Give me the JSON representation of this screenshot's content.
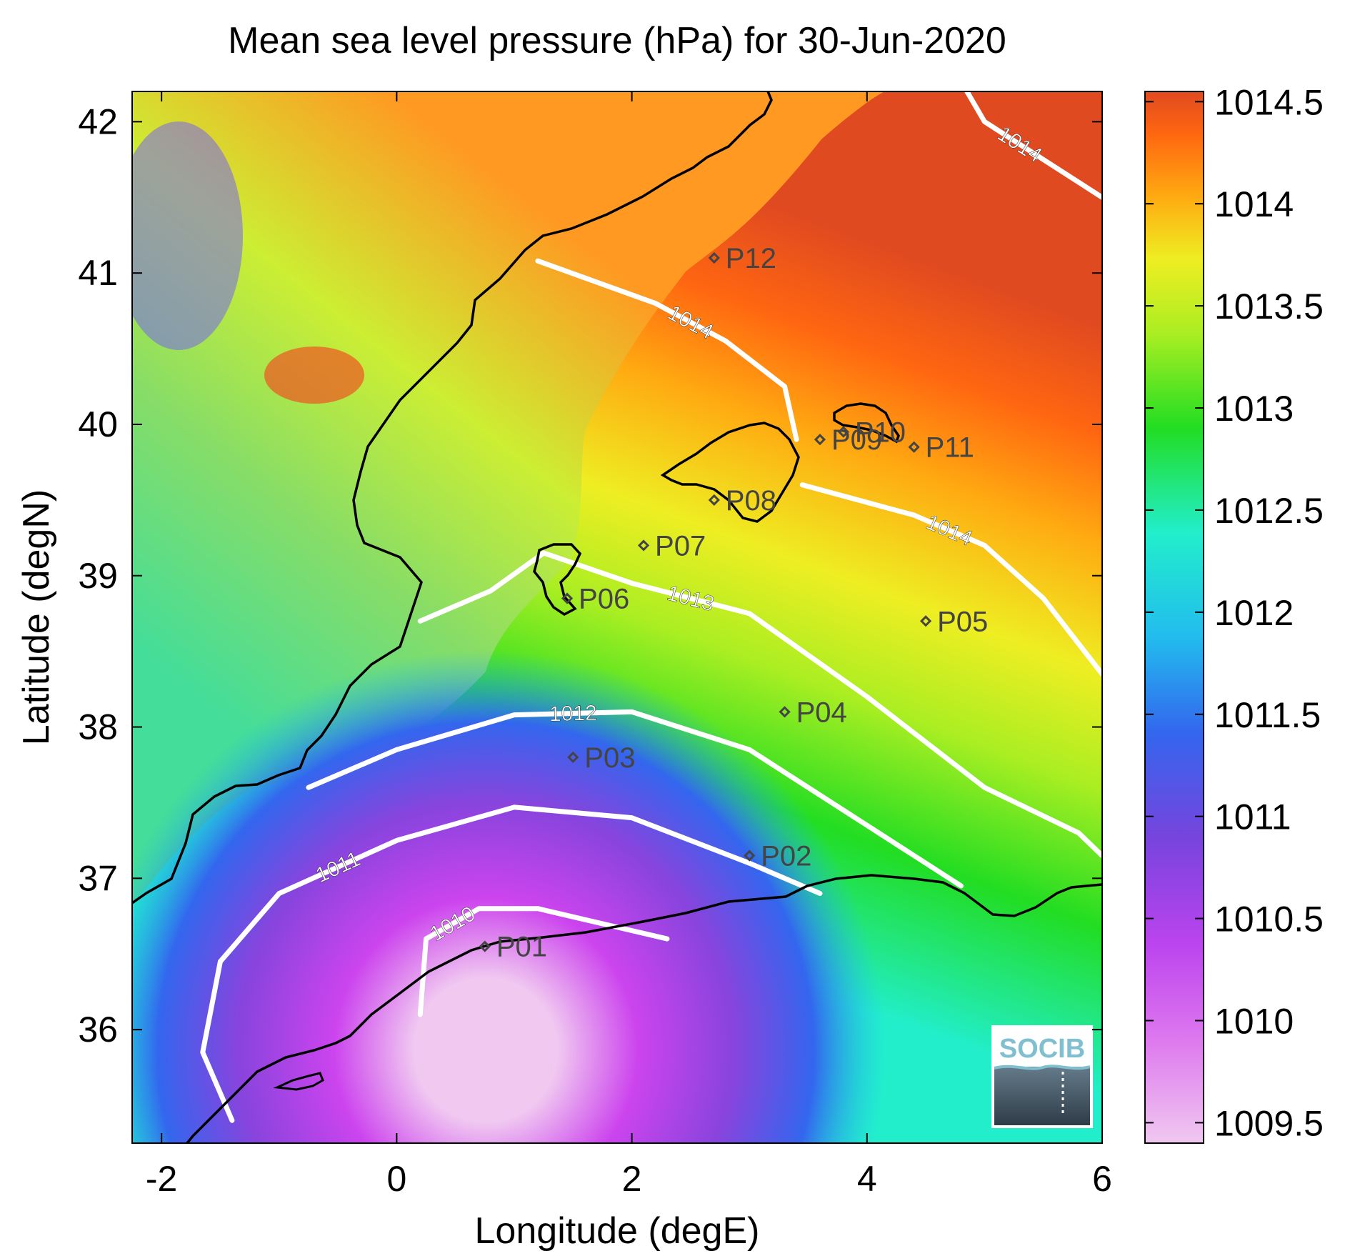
{
  "title": "Mean sea level pressure (hPa) for 30-Jun-2020",
  "chart_data": {
    "type": "heatmap",
    "title": "Mean sea level pressure (hPa) for 30-Jun-2020",
    "xlabel": "Longitude (degE)",
    "ylabel": "Latitude (degN)",
    "xlim": [
      -2.25,
      6.0
    ],
    "ylim": [
      35.25,
      42.2
    ],
    "xticks": [
      -2,
      0,
      2,
      4,
      6
    ],
    "xtick_labels": [
      "-2",
      "0",
      "2",
      "4",
      "6"
    ],
    "yticks": [
      36,
      37,
      38,
      39,
      40,
      41,
      42
    ],
    "ytick_labels": [
      "36",
      "37",
      "38",
      "39",
      "40",
      "41",
      "42"
    ],
    "grid": false,
    "colorbar": {
      "min": 1009.4,
      "max": 1014.55,
      "ticks": [
        1009.5,
        1010,
        1010.5,
        1011,
        1011.5,
        1012,
        1012.5,
        1013,
        1013.5,
        1014,
        1014.5
      ],
      "tick_labels": [
        "1009.5",
        "1010",
        "1010.5",
        "1011",
        "1011.5",
        "1012",
        "1012.5",
        "1013",
        "1013.5",
        "1014",
        "1014.5"
      ],
      "colors": [
        "#f0c8f0",
        "#cc44ee",
        "#8844dd",
        "#3366ee",
        "#22bbee",
        "#22eecc",
        "#22dd22",
        "#aaee22",
        "#eeee22",
        "#ffaa11",
        "#ff6611",
        "#e04a20"
      ]
    },
    "contour_lines": [
      {
        "level": 1010,
        "label": "1010",
        "points": [
          [
            0.2,
            36.1
          ],
          [
            0.25,
            36.6
          ],
          [
            0.7,
            36.8
          ],
          [
            1.2,
            36.8
          ],
          [
            2.3,
            36.6
          ]
        ]
      },
      {
        "level": 1011,
        "label": "1011",
        "points": [
          [
            -1.4,
            35.4
          ],
          [
            -1.65,
            35.85
          ],
          [
            -1.5,
            36.45
          ],
          [
            -1.0,
            36.9
          ],
          [
            0.0,
            37.25
          ],
          [
            1.0,
            37.47
          ],
          [
            2.0,
            37.4
          ],
          [
            3.0,
            37.1
          ],
          [
            3.6,
            36.9
          ]
        ]
      },
      {
        "level": 1012,
        "label": "1012",
        "points": [
          [
            -0.75,
            37.6
          ],
          [
            0.0,
            37.85
          ],
          [
            1.0,
            38.08
          ],
          [
            2.0,
            38.1
          ],
          [
            3.0,
            37.85
          ],
          [
            4.0,
            37.35
          ],
          [
            4.8,
            36.95
          ]
        ]
      },
      {
        "level": 1013,
        "label": "1013",
        "points": [
          [
            0.2,
            38.7
          ],
          [
            0.8,
            38.9
          ],
          [
            1.25,
            39.15
          ],
          [
            2.0,
            38.95
          ],
          [
            3.0,
            38.75
          ],
          [
            4.0,
            38.2
          ],
          [
            5.0,
            37.6
          ],
          [
            5.8,
            37.3
          ],
          [
            6.0,
            37.15
          ]
        ]
      },
      {
        "level": 1014,
        "label": "1014",
        "points": [
          [
            1.2,
            41.08
          ],
          [
            2.2,
            40.8
          ],
          [
            2.8,
            40.55
          ],
          [
            3.3,
            40.25
          ],
          [
            3.4,
            39.9
          ]
        ]
      },
      {
        "level": 1014,
        "label": "1014",
        "points": [
          [
            3.45,
            39.6
          ],
          [
            4.4,
            39.4
          ],
          [
            5.0,
            39.2
          ],
          [
            5.5,
            38.85
          ],
          [
            6.0,
            38.35
          ]
        ]
      },
      {
        "level": 1014,
        "label": "1014",
        "points": [
          [
            4.85,
            42.2
          ],
          [
            5.0,
            42.0
          ],
          [
            5.6,
            41.7
          ],
          [
            6.0,
            41.5
          ]
        ]
      }
    ],
    "points": [
      {
        "name": "P01",
        "lon": 0.75,
        "lat": 36.55
      },
      {
        "name": "P02",
        "lon": 3.0,
        "lat": 37.15
      },
      {
        "name": "P03",
        "lon": 1.5,
        "lat": 37.8
      },
      {
        "name": "P04",
        "lon": 3.3,
        "lat": 38.1
      },
      {
        "name": "P05",
        "lon": 4.5,
        "lat": 38.7
      },
      {
        "name": "P06",
        "lon": 1.45,
        "lat": 38.85
      },
      {
        "name": "P07",
        "lon": 2.1,
        "lat": 39.2
      },
      {
        "name": "P08",
        "lon": 2.7,
        "lat": 39.5
      },
      {
        "name": "P09",
        "lon": 3.6,
        "lat": 39.9
      },
      {
        "name": "P10",
        "lon": 3.8,
        "lat": 39.95
      },
      {
        "name": "P11",
        "lon": 4.4,
        "lat": 39.85
      },
      {
        "name": "P12",
        "lon": 2.7,
        "lat": 41.1
      }
    ]
  },
  "logo": {
    "text": "SOCIB"
  }
}
